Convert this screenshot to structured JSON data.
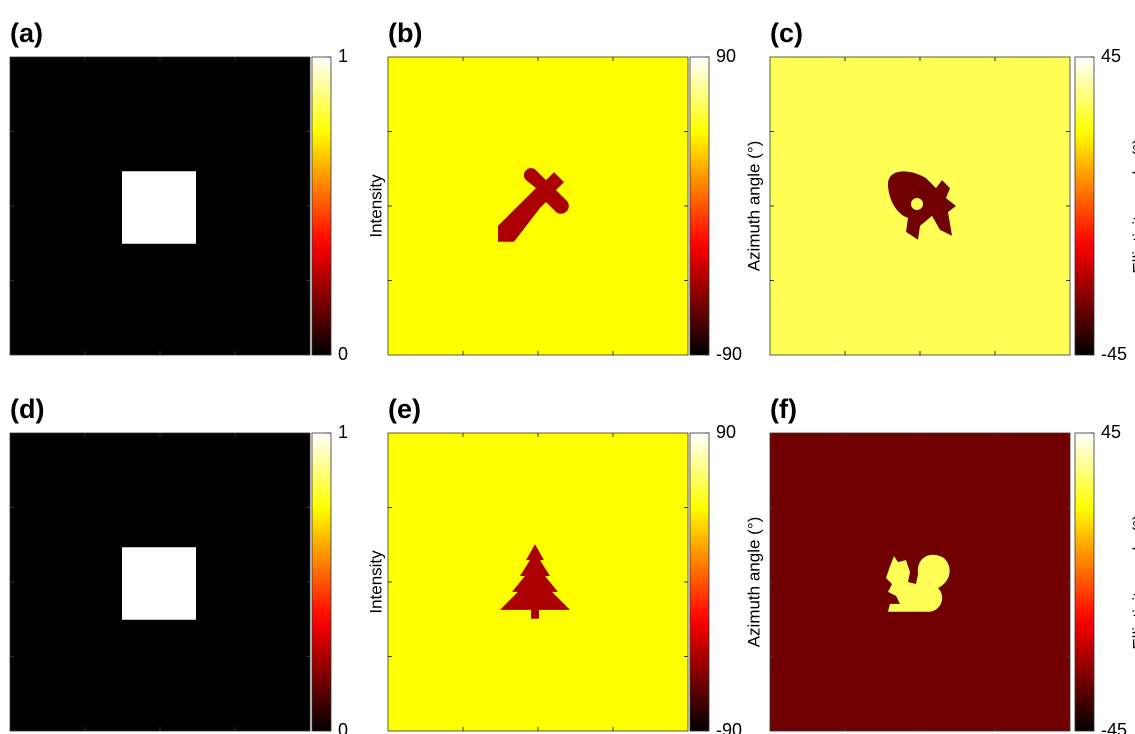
{
  "chart_data": [
    {
      "type": "image",
      "label": "(a)",
      "colorbar_label": "Intensity",
      "colormap": "hot",
      "clim": [
        0,
        1
      ],
      "cticks": [
        0,
        1
      ],
      "background_value": 0,
      "shape_value": 1
    },
    {
      "type": "image",
      "label": "(b)",
      "colorbar_label": "Azimuth angle (°)",
      "colormap": "hot",
      "clim": [
        -90,
        90
      ],
      "cticks": [
        -90,
        90
      ],
      "background_value": 45,
      "shape_value": -45
    },
    {
      "type": "image",
      "label": "(c)",
      "colorbar_label": "Ellipticity angle (°)",
      "colormap": "hot",
      "clim": [
        -45,
        45
      ],
      "cticks": [
        -45,
        45
      ],
      "background_value": 30,
      "shape_value": -30
    },
    {
      "type": "image",
      "label": "(d)",
      "colorbar_label": "Intensity",
      "colormap": "hot",
      "clim": [
        0,
        1
      ],
      "cticks": [
        0,
        1
      ],
      "background_value": 0,
      "shape_value": 1
    },
    {
      "type": "image",
      "label": "(e)",
      "colorbar_label": "Azimuth angle (°)",
      "colormap": "hot",
      "clim": [
        -90,
        90
      ],
      "cticks": [
        -90,
        90
      ],
      "background_value": 45,
      "shape_value": -45
    },
    {
      "type": "image",
      "label": "(f)",
      "colorbar_label": "Ellipticity angle (°)",
      "colormap": "hot",
      "clim": [
        -45,
        45
      ],
      "cticks": [
        -45,
        45
      ],
      "background_value": -30,
      "shape_value": 30
    }
  ]
}
